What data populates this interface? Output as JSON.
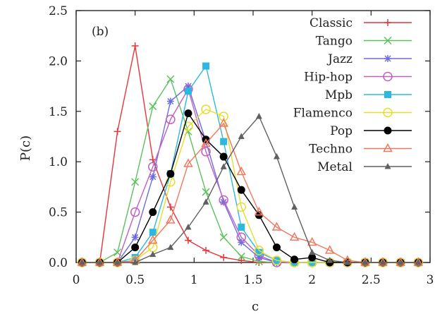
{
  "chart_data": {
    "type": "line",
    "panel_label": "(b)",
    "xlabel": "c",
    "ylabel": "P(c)",
    "xlim": [
      0,
      3
    ],
    "ylim": [
      0,
      2.5
    ],
    "x_ticks": [
      0,
      0.5,
      1,
      1.5,
      2,
      2.5,
      3
    ],
    "x_tick_labels": [
      "0",
      "0.5",
      "1",
      "1.5",
      "2",
      "2.5",
      "3"
    ],
    "y_ticks": [
      0,
      0.5,
      1,
      1.5,
      2,
      2.5
    ],
    "y_tick_labels": [
      "0.0",
      "0.5",
      "1.0",
      "1.5",
      "2.0",
      "2.5"
    ],
    "grid": false,
    "legend_position": "top-right",
    "x": [
      0.05,
      0.2,
      0.35,
      0.5,
      0.65,
      0.8,
      0.95,
      1.1,
      1.25,
      1.4,
      1.55,
      1.7,
      1.85,
      2.0,
      2.15,
      2.3,
      2.45,
      2.6,
      2.75,
      2.9
    ],
    "series": [
      {
        "name": "Classic",
        "color": "#e8353a",
        "marker": "plus",
        "values": [
          0,
          0,
          1.3,
          2.15,
          1.02,
          0.55,
          0.22,
          0.12,
          0.05,
          0.02,
          0,
          0,
          0,
          0,
          0,
          0,
          0,
          0,
          0,
          0
        ]
      },
      {
        "name": "Tango",
        "color": "#5cc15c",
        "marker": "x",
        "values": [
          0,
          0,
          0.1,
          0.8,
          1.55,
          1.82,
          1.3,
          0.7,
          0.25,
          0.06,
          0.01,
          0,
          0,
          0,
          0,
          0,
          0,
          0,
          0,
          0
        ]
      },
      {
        "name": "Jazz",
        "color": "#6c6ce0",
        "marker": "asterisk",
        "values": [
          0,
          0,
          0,
          0.25,
          0.85,
          1.6,
          1.75,
          1.2,
          0.6,
          0.2,
          0.05,
          0,
          0,
          0,
          0,
          0,
          0,
          0,
          0,
          0
        ]
      },
      {
        "name": "Hip-hop",
        "color": "#c060c0",
        "marker": "circle-open",
        "values": [
          0,
          0,
          0,
          0.5,
          0.95,
          1.42,
          1.72,
          1.1,
          0.62,
          0.25,
          0.07,
          0,
          0,
          0,
          0,
          0,
          0,
          0,
          0,
          0
        ]
      },
      {
        "name": "Mpb",
        "color": "#2cb8e0",
        "marker": "square-filled",
        "values": [
          0,
          0,
          0,
          0.05,
          0.3,
          0.88,
          1.7,
          1.95,
          1.2,
          0.35,
          0.1,
          0.02,
          0,
          0,
          0,
          0,
          0,
          0,
          0,
          0
        ]
      },
      {
        "name": "Flamenco",
        "color": "#e8dc30",
        "marker": "circle-open",
        "values": [
          0,
          0,
          0,
          0.02,
          0.15,
          0.8,
          1.35,
          1.52,
          1.45,
          0.55,
          0.12,
          0.02,
          0,
          0,
          0,
          0,
          0,
          0,
          0,
          0
        ]
      },
      {
        "name": "Pop",
        "color": "#000000",
        "marker": "circle-filled",
        "values": [
          0,
          0,
          0,
          0.15,
          0.5,
          0.88,
          1.48,
          1.22,
          1.05,
          0.72,
          0.47,
          0.15,
          0.03,
          0.05,
          0,
          0,
          0,
          0,
          0,
          0
        ]
      },
      {
        "name": "Techno",
        "color": "#f07860",
        "marker": "triangle-open",
        "values": [
          0,
          0,
          0,
          0.02,
          0.22,
          0.42,
          0.98,
          1.18,
          1.38,
          0.9,
          0.5,
          0.35,
          0.25,
          0.2,
          0.12,
          0.02,
          0,
          0,
          0,
          0
        ]
      },
      {
        "name": "Metal",
        "color": "#606060",
        "marker": "triangle-filled",
        "values": [
          0,
          0,
          0,
          0,
          0.08,
          0.15,
          0.35,
          0.6,
          0.95,
          1.25,
          1.45,
          1.05,
          0.55,
          0.1,
          0.02,
          0,
          0,
          0,
          0,
          0
        ]
      }
    ]
  }
}
